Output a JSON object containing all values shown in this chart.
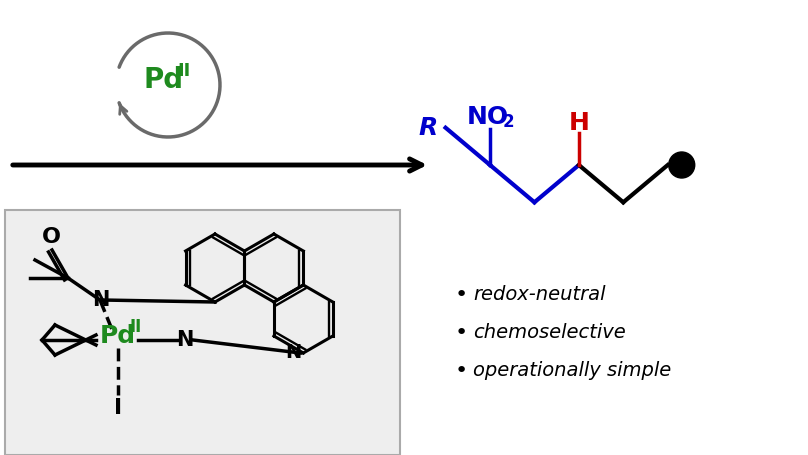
{
  "bg_color": "#ffffff",
  "pd_green": "#1e8a1e",
  "blue_color": "#0000cc",
  "red_color": "#cc0000",
  "black_color": "#000000",
  "gray_color": "#6a6a6a",
  "box_fill": "#eeeeee",
  "box_edge": "#aaaaaa",
  "bullet_texts": [
    "redox-neutral",
    "chemoselective",
    "operationally simple"
  ],
  "bullet_fontsize": 14
}
